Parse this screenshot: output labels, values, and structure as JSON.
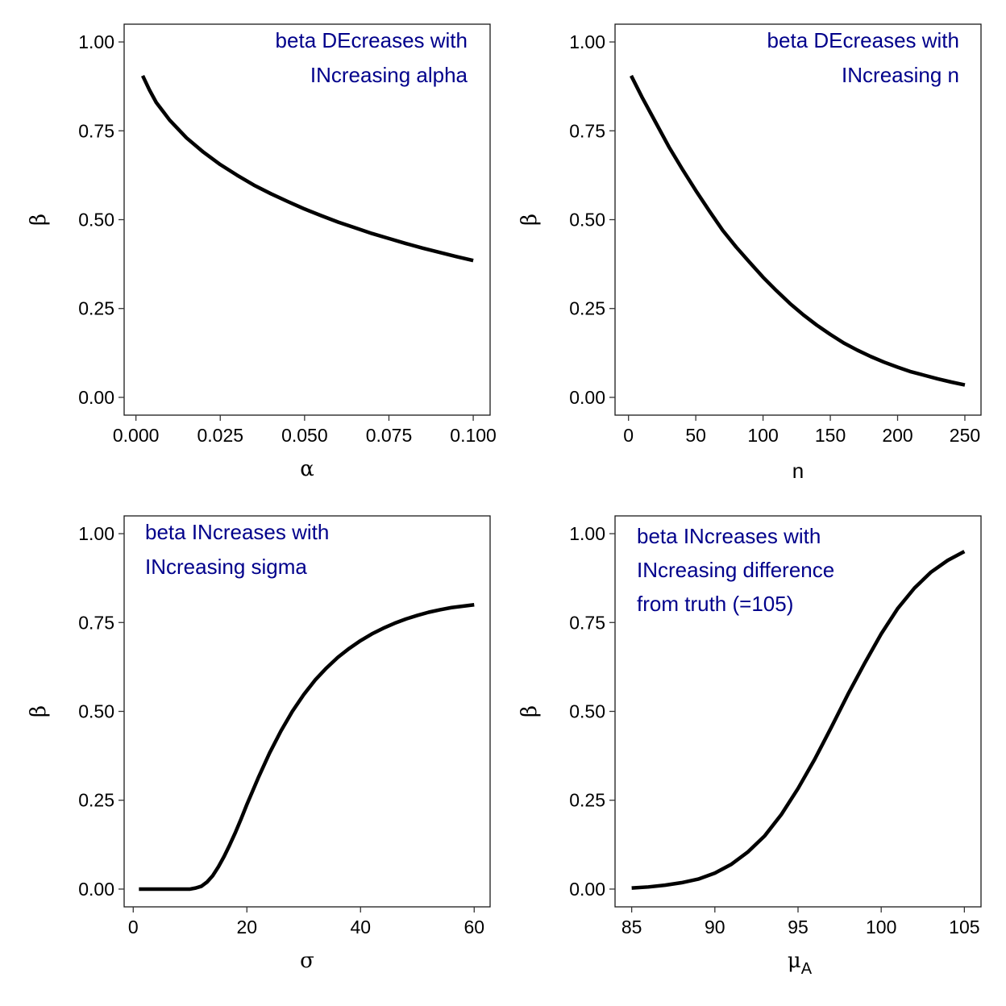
{
  "chart_data": [
    {
      "type": "line",
      "xlabel": "α",
      "ylabel": "β",
      "annotation": [
        "beta DEcreases with",
        "INcreasing alpha"
      ],
      "xlim": [
        -0.0035,
        0.105
      ],
      "ylim": [
        -0.05,
        1.05
      ],
      "xticks": [
        0.0,
        0.025,
        0.05,
        0.075,
        0.1
      ],
      "xtick_labels": [
        "0.000",
        "0.025",
        "0.050",
        "0.075",
        "0.100"
      ],
      "yticks": [
        0.0,
        0.25,
        0.5,
        0.75,
        1.0
      ],
      "ytick_labels": [
        "0.00",
        "0.25",
        "0.50",
        "0.75",
        "1.00"
      ],
      "series": [
        {
          "x": [
            0.002,
            0.004,
            0.006,
            0.008,
            0.01,
            0.015,
            0.02,
            0.025,
            0.03,
            0.035,
            0.04,
            0.045,
            0.05,
            0.055,
            0.06,
            0.065,
            0.07,
            0.075,
            0.08,
            0.085,
            0.09,
            0.095,
            0.1
          ],
          "y": [
            0.905,
            0.865,
            0.83,
            0.805,
            0.78,
            0.73,
            0.69,
            0.655,
            0.625,
            0.597,
            0.573,
            0.551,
            0.53,
            0.511,
            0.493,
            0.477,
            0.461,
            0.447,
            0.433,
            0.42,
            0.408,
            0.396,
            0.385
          ]
        }
      ]
    },
    {
      "type": "line",
      "xlabel": "n",
      "ylabel": "β",
      "annotation": [
        "beta DEcreases with",
        "INcreasing n"
      ],
      "xlim": [
        -10,
        262
      ],
      "ylim": [
        -0.05,
        1.05
      ],
      "xticks": [
        0,
        50,
        100,
        150,
        200,
        250
      ],
      "xtick_labels": [
        "0",
        "50",
        "100",
        "150",
        "200",
        "250"
      ],
      "yticks": [
        0.0,
        0.25,
        0.5,
        0.75,
        1.0
      ],
      "ytick_labels": [
        "0.00",
        "0.25",
        "0.50",
        "0.75",
        "1.00"
      ],
      "series": [
        {
          "x": [
            2,
            10,
            20,
            30,
            40,
            50,
            60,
            70,
            80,
            90,
            100,
            110,
            120,
            130,
            140,
            150,
            160,
            170,
            180,
            190,
            200,
            210,
            220,
            230,
            240,
            250
          ],
          "y": [
            0.905,
            0.845,
            0.775,
            0.705,
            0.642,
            0.582,
            0.525,
            0.47,
            0.423,
            0.38,
            0.338,
            0.3,
            0.264,
            0.232,
            0.203,
            0.177,
            0.153,
            0.133,
            0.115,
            0.099,
            0.085,
            0.072,
            0.062,
            0.052,
            0.043,
            0.035
          ]
        }
      ]
    },
    {
      "type": "line",
      "xlabel": "σ",
      "ylabel": "β",
      "annotation": [
        "beta INcreases with",
        "INcreasing sigma"
      ],
      "xlim": [
        -1.6,
        62.8
      ],
      "ylim": [
        -0.05,
        1.05
      ],
      "xticks": [
        0,
        20,
        40,
        60
      ],
      "xtick_labels": [
        "0",
        "20",
        "40",
        "60"
      ],
      "yticks": [
        0.0,
        0.25,
        0.5,
        0.75,
        1.0
      ],
      "ytick_labels": [
        "0.00",
        "0.25",
        "0.50",
        "0.75",
        "1.00"
      ],
      "series": [
        {
          "x": [
            1,
            5,
            10,
            11,
            12,
            13,
            14,
            15,
            16,
            17,
            18,
            19,
            20,
            22,
            24,
            26,
            28,
            30,
            32,
            34,
            36,
            38,
            40,
            42,
            44,
            46,
            48,
            50,
            52,
            54,
            56,
            58,
            60
          ],
          "y": [
            0.0,
            0.0,
            0.0,
            0.003,
            0.008,
            0.02,
            0.038,
            0.063,
            0.092,
            0.125,
            0.16,
            0.198,
            0.238,
            0.313,
            0.383,
            0.445,
            0.5,
            0.547,
            0.588,
            0.622,
            0.652,
            0.677,
            0.699,
            0.718,
            0.734,
            0.748,
            0.76,
            0.77,
            0.779,
            0.786,
            0.792,
            0.796,
            0.8
          ]
        }
      ]
    },
    {
      "type": "line",
      "xlabel": "μ",
      "xlabel_sub": "A",
      "ylabel": "β",
      "annotation": [
        "beta INcreases with",
        "INcreasing difference",
        "from truth (=105)"
      ],
      "xlim": [
        84.0,
        106.0
      ],
      "ylim": [
        -0.05,
        1.05
      ],
      "xticks": [
        85,
        90,
        95,
        100,
        105
      ],
      "xtick_labels": [
        "85",
        "90",
        "95",
        "100",
        "105"
      ],
      "yticks": [
        0.0,
        0.25,
        0.5,
        0.75,
        1.0
      ],
      "ytick_labels": [
        "0.00",
        "0.25",
        "0.50",
        "0.75",
        "1.00"
      ],
      "series": [
        {
          "x": [
            85,
            86,
            87,
            88,
            89,
            90,
            91,
            92,
            93,
            94,
            95,
            96,
            97,
            98,
            99,
            100,
            101,
            102,
            103,
            104,
            105
          ],
          "y": [
            0.003,
            0.006,
            0.011,
            0.018,
            0.028,
            0.045,
            0.07,
            0.105,
            0.15,
            0.21,
            0.283,
            0.365,
            0.455,
            0.548,
            0.635,
            0.718,
            0.79,
            0.847,
            0.892,
            0.925,
            0.95
          ]
        }
      ]
    }
  ]
}
